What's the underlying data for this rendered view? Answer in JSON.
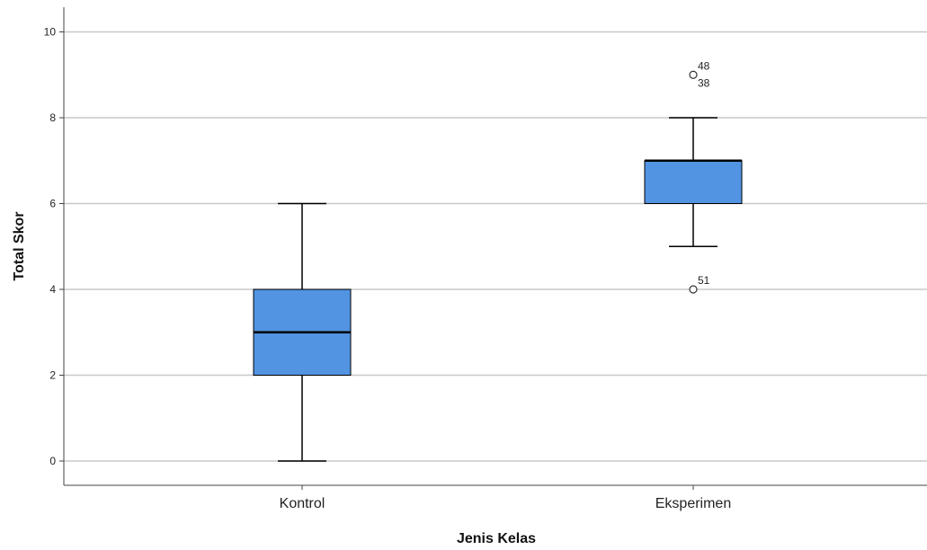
{
  "chart_data": {
    "type": "box",
    "xlabel": "Jenis Kelas",
    "ylabel": "Total Skor",
    "ylim": [
      -0.6,
      10.6
    ],
    "yticks": [
      0,
      2,
      4,
      6,
      8,
      10
    ],
    "grid": true,
    "categories": [
      "Kontrol",
      "Eksperimen"
    ],
    "boxes": [
      {
        "category": "Kontrol",
        "whisker_low": 0,
        "q1": 2,
        "median": 3,
        "q3": 4,
        "whisker_high": 6,
        "outliers": []
      },
      {
        "category": "Eksperimen",
        "whisker_low": 5,
        "q1": 6,
        "median": 7,
        "q3": 7,
        "whisker_high": 8,
        "outliers": [
          {
            "value": 9,
            "labels": [
              "48",
              "38"
            ]
          },
          {
            "value": 4,
            "labels": [
              "51"
            ]
          }
        ]
      }
    ]
  },
  "colors": {
    "box_fill": "#5294E2",
    "line": "#000000",
    "grid": "#c8c8c8",
    "axis": "#444444"
  }
}
